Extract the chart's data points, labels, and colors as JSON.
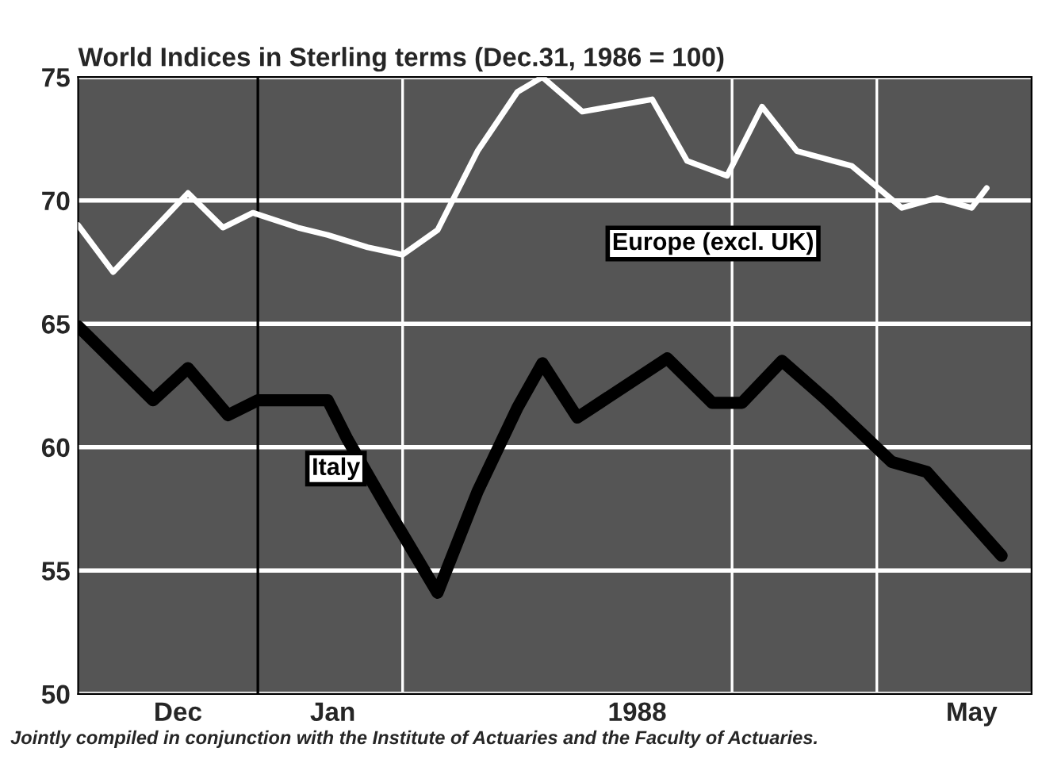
{
  "chart_data": {
    "type": "line",
    "title": "World Indices in Sterling terms (Dec.31, 1986 = 100)",
    "x": [
      "1987-11-26",
      "1987-12-03",
      "1987-12-18",
      "1987-12-25",
      "1987-12-31",
      "1988-01-09",
      "1988-01-15",
      "1988-01-23",
      "1988-01-30",
      "1988-02-06",
      "1988-02-14",
      "1988-02-22",
      "1988-02-27",
      "1988-03-06",
      "1988-03-20",
      "1988-03-27",
      "1988-04-04",
      "1988-04-11",
      "1988-04-18",
      "1988-04-29",
      "1988-05-09",
      "1988-05-16",
      "1988-05-23",
      "1988-05-26"
    ],
    "series": [
      {
        "name": "Europe (excl. UK)",
        "color": "#ffffff",
        "values": [
          69.0,
          67.1,
          70.3,
          68.9,
          69.5,
          68.9,
          68.6,
          68.1,
          67.8,
          68.8,
          72.0,
          74.4,
          75.0,
          73.6,
          74.1,
          71.6,
          71.0,
          73.8,
          72.0,
          71.4,
          69.7,
          70.1,
          69.7,
          70.5
        ]
      },
      {
        "name": "Italy",
        "color": "#000000",
        "x": [
          "1987-11-26",
          "1987-12-11",
          "1987-12-18",
          "1987-12-26",
          "1988-01-01",
          "1988-01-15",
          "1988-01-19",
          "1988-01-27",
          "1988-02-06",
          "1988-02-14",
          "1988-02-22",
          "1988-02-27",
          "1988-03-05",
          "1988-03-23",
          "1988-04-01",
          "1988-04-07",
          "1988-04-15",
          "1988-04-24",
          "1988-05-07",
          "1988-05-14",
          "1988-05-29"
        ],
        "values": [
          64.9,
          61.9,
          63.2,
          61.3,
          61.9,
          61.9,
          60.3,
          57.5,
          54.1,
          58.2,
          61.6,
          63.4,
          61.2,
          63.6,
          61.8,
          61.8,
          63.5,
          61.9,
          59.4,
          59.0,
          55.6
        ]
      }
    ],
    "xlim": [
      "1987-11-26",
      "1988-06-04"
    ],
    "xticks": [
      {
        "value": "1987-12-16",
        "label": "Dec"
      },
      {
        "value": "1988-01-16",
        "label": "Jan"
      },
      {
        "value": "1988-03-17",
        "label": "1988"
      },
      {
        "value": "1988-05-23",
        "label": "May"
      }
    ],
    "ylim": [
      50,
      75
    ],
    "yticks": [
      50,
      55,
      60,
      65,
      70,
      75
    ],
    "ref_lines": [
      {
        "axis": "x",
        "value": "1988-01-01",
        "color": "#000000"
      },
      {
        "axis": "x",
        "value": "1988-01-30",
        "color": "#ffffff"
      },
      {
        "axis": "x",
        "value": "1988-04-05",
        "color": "#ffffff"
      },
      {
        "axis": "x",
        "value": "1988-05-04",
        "color": "#ffffff"
      }
    ],
    "grid": "y",
    "legend": false,
    "annotations": [
      "Jointly compiled in conjunction with the Institute of Actuaries and the Faculty of Actuaries."
    ]
  }
}
